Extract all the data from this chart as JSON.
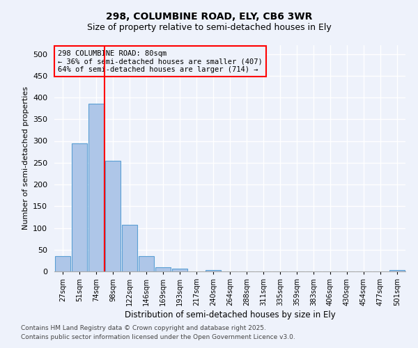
{
  "title1": "298, COLUMBINE ROAD, ELY, CB6 3WR",
  "title2": "Size of property relative to semi-detached houses in Ely",
  "xlabel": "Distribution of semi-detached houses by size in Ely",
  "ylabel": "Number of semi-detached properties",
  "categories": [
    "27sqm",
    "51sqm",
    "74sqm",
    "98sqm",
    "122sqm",
    "146sqm",
    "169sqm",
    "193sqm",
    "217sqm",
    "240sqm",
    "264sqm",
    "288sqm",
    "311sqm",
    "335sqm",
    "359sqm",
    "383sqm",
    "406sqm",
    "430sqm",
    "454sqm",
    "477sqm",
    "501sqm"
  ],
  "values": [
    35,
    295,
    385,
    255,
    108,
    35,
    10,
    6,
    0,
    4,
    0,
    0,
    0,
    0,
    0,
    0,
    0,
    0,
    0,
    0,
    4
  ],
  "bar_color": "#aec6e8",
  "bar_edge_color": "#5a9fd4",
  "vline_x": 2.5,
  "vline_color": "red",
  "annotation_box_text": "298 COLUMBINE ROAD: 80sqm\n← 36% of semi-detached houses are smaller (407)\n64% of semi-detached houses are larger (714) →",
  "annotation_box_color": "red",
  "background_color": "#eef2fb",
  "grid_color": "#ffffff",
  "footer1": "Contains HM Land Registry data © Crown copyright and database right 2025.",
  "footer2": "Contains public sector information licensed under the Open Government Licence v3.0.",
  "ylim": [
    0,
    520
  ],
  "yticks": [
    0,
    50,
    100,
    150,
    200,
    250,
    300,
    350,
    400,
    450,
    500
  ]
}
